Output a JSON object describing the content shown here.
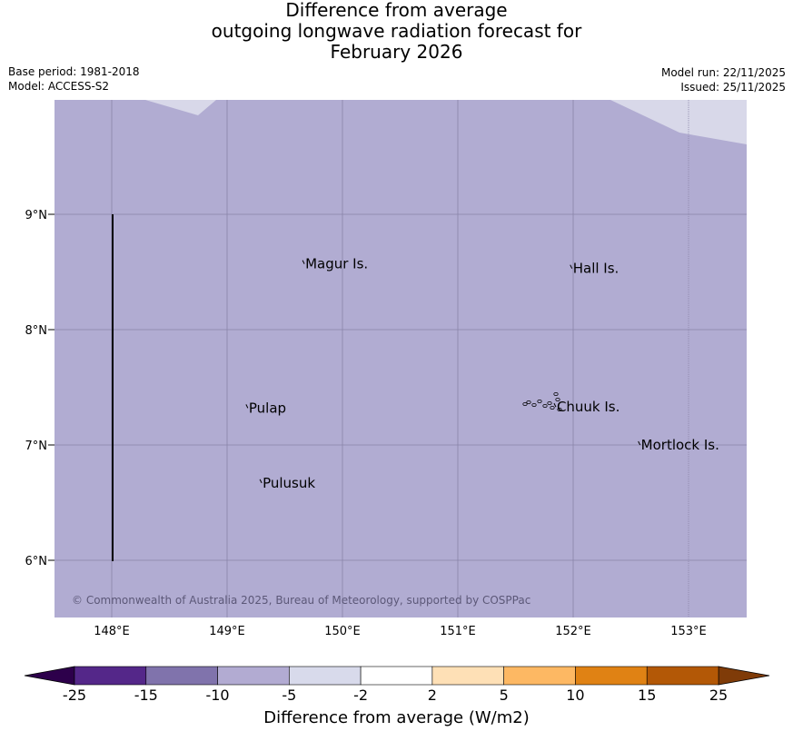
{
  "title": {
    "line1": "Difference from average",
    "line2": "outgoing longwave radiation forecast for",
    "line3": "February 2026"
  },
  "meta": {
    "base_period": "Base period: 1981-2018",
    "model": "Model: ACCESS-S2",
    "model_run": "Model run: 22/11/2025",
    "issued": "Issued: 25/11/2025"
  },
  "map": {
    "lon_range": [
      147.5,
      153.5
    ],
    "lat_range": [
      5.5,
      10.0
    ],
    "lon_ticks": [
      "148°E",
      "149°E",
      "150°E",
      "151°E",
      "152°E",
      "153°E"
    ],
    "lat_ticks": [
      "9°N",
      "8°N",
      "7°N",
      "6°N"
    ],
    "fill_color": "#b1acd2",
    "light_region_color": "#d8d8e9",
    "places": [
      {
        "name": "Magur Is.",
        "lon": 149.67,
        "lat": 8.57
      },
      {
        "name": "Hall Is.",
        "lon": 151.99,
        "lat": 8.53
      },
      {
        "name": "Pulap",
        "lon": 149.18,
        "lat": 7.32
      },
      {
        "name": "Chuuk Is.",
        "lon": 151.85,
        "lat": 7.33
      },
      {
        "name": "Mortlock Is.",
        "lon": 152.58,
        "lat": 7.0
      },
      {
        "name": "Pulusuk",
        "lon": 149.3,
        "lat": 6.67
      }
    ],
    "copyright": "© Commonwealth of Australia 2025, Bureau of Meteorology, supported by COSPPac"
  },
  "colorbar": {
    "title": "Difference from average (W/m2)",
    "labels": [
      "-25",
      "-15",
      "-10",
      "-5",
      "-2",
      "2",
      "5",
      "10",
      "15",
      "25"
    ],
    "colors": [
      "#542789",
      "#8073ac",
      "#b2abd2",
      "#d8daeb",
      "#ffffff",
      "#fee0b6",
      "#fdb863",
      "#e08214",
      "#b35806"
    ],
    "under_color": "#2d004b",
    "over_color": "#7f3b08"
  }
}
